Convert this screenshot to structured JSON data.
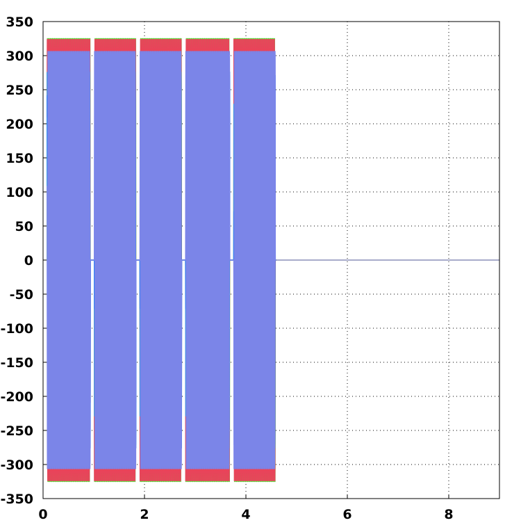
{
  "chart_data": {
    "type": "line",
    "title": "",
    "xlabel": "",
    "ylabel": "",
    "xlim": [
      0,
      9
    ],
    "ylim": [
      -350,
      350
    ],
    "x_ticks": [
      0,
      2,
      4,
      6,
      8
    ],
    "x_tick_labels": [
      "0",
      "2",
      "4",
      "6",
      "8"
    ],
    "y_ticks": [
      -350,
      -300,
      -250,
      -200,
      -150,
      -100,
      -50,
      0,
      50,
      100,
      150,
      200,
      250,
      300,
      350
    ],
    "y_tick_labels": [
      "-350",
      "-300",
      "-250",
      "-200",
      "-150",
      "-100",
      "-50",
      "0",
      "50",
      "100",
      "150",
      "200",
      "250",
      "300",
      "350"
    ],
    "grid": "dotted",
    "legend": "none",
    "bursts": [
      {
        "start": 0.0,
        "end": 0.95
      },
      {
        "start": 0.95,
        "end": 1.85
      },
      {
        "start": 1.85,
        "end": 2.75
      },
      {
        "start": 2.75,
        "end": 3.7
      },
      {
        "start": 3.7,
        "end": 4.6
      }
    ],
    "series": [
      {
        "color": "#5ad63a",
        "amplitude": 325,
        "frequency_hz": 50,
        "x_start": 0.08,
        "x_end": 4.6,
        "value_after": 0
      },
      {
        "color": "#e8445a",
        "amplitude": 325,
        "frequency_hz": 50,
        "x_start": 0.08,
        "x_end": 4.6,
        "value_after": 0
      },
      {
        "color": "#2b9be8",
        "amplitude": 280,
        "frequency_hz": 50,
        "x_start": 0.08,
        "x_end": 4.6,
        "value_after": 0
      },
      {
        "color": "#1a7fff",
        "amplitude": 280,
        "frequency_hz": 50,
        "x_start": 0.08,
        "x_end": 4.6,
        "value_after": 0
      },
      {
        "color": "#7b85e8",
        "amplitude": 325,
        "frequency_hz": 50,
        "x_start": 0.08,
        "x_end": 4.6,
        "value_after": 0
      }
    ],
    "baseline_color": "#8a8fb8"
  }
}
